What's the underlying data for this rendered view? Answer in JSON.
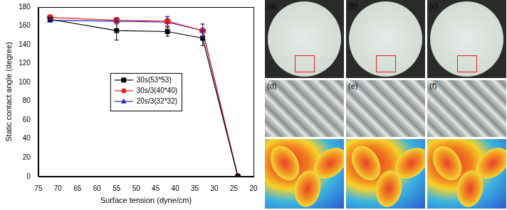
{
  "chart_data": {
    "type": "line",
    "x_label": "Surface tension (dyne/cm)",
    "y_label": "Static contact angle (degree)",
    "x": [
      72,
      55,
      42,
      33,
      24
    ],
    "series": [
      {
        "name": "30s(53*53)",
        "color": "#000000",
        "marker": "square",
        "values": [
          167,
          155,
          154,
          147,
          0
        ],
        "errors": [
          2,
          10,
          5,
          8,
          0
        ]
      },
      {
        "name": "30s/3(40*40)",
        "color": "#e8231d",
        "marker": "circle",
        "values": [
          169,
          166,
          165,
          155,
          0
        ],
        "errors": [
          2,
          3,
          5,
          7,
          0
        ]
      },
      {
        "name": "20s/3(32*32)",
        "color": "#2323d2",
        "marker": "triangle",
        "values": [
          166,
          165,
          164,
          155,
          0
        ],
        "errors": [
          2,
          3,
          6,
          7,
          0
        ]
      }
    ],
    "xlim": [
      75,
      20
    ],
    "xticks": [
      75,
      70,
      65,
      60,
      55,
      50,
      45,
      40,
      35,
      30,
      25,
      20
    ],
    "ylim": [
      0,
      180
    ],
    "yticks": [
      0,
      20,
      40,
      60,
      80,
      100,
      120,
      140,
      160,
      180
    ],
    "grid": false,
    "legend": "center"
  },
  "image_panels": {
    "labels": [
      "(a)",
      "(b)",
      "(c)",
      "(d)",
      "(e)",
      "(f)"
    ]
  }
}
